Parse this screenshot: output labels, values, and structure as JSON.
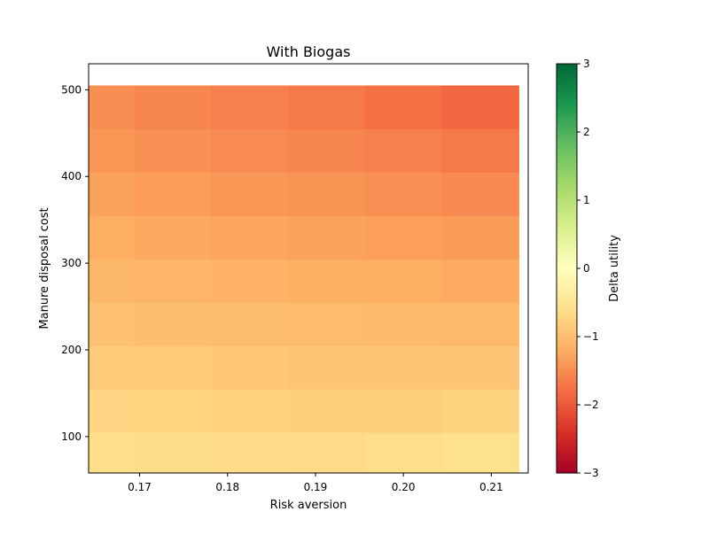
{
  "chart_data": {
    "type": "heatmap",
    "title": "With Biogas",
    "xlabel": "Risk aversion",
    "ylabel": "Manure disposal cost",
    "x": [
      0.165,
      0.17375,
      0.1825,
      0.19125,
      0.2,
      0.20875
    ],
    "y": [
      80,
      130,
      180,
      230,
      280,
      330,
      380,
      430,
      480
    ],
    "x_ticks": [
      0.17,
      0.18,
      0.19,
      0.2,
      0.21
    ],
    "x_tick_labels": [
      "0.17",
      "0.18",
      "0.19",
      "0.20",
      "0.21"
    ],
    "y_ticks": [
      100,
      200,
      300,
      400,
      500
    ],
    "y_tick_labels": [
      "100",
      "200",
      "300",
      "400",
      "500"
    ],
    "xlim": [
      0.1642,
      0.2142
    ],
    "ylim": [
      58,
      530
    ],
    "values": [
      [
        -0.62,
        -0.64,
        -0.65,
        -0.66,
        -0.62,
        -0.58
      ],
      [
        -0.73,
        -0.75,
        -0.77,
        -0.79,
        -0.79,
        -0.76
      ],
      [
        -0.85,
        -0.87,
        -0.89,
        -0.91,
        -0.93,
        -0.92
      ],
      [
        -0.97,
        -1.0,
        -1.02,
        -1.04,
        -1.06,
        -1.08
      ],
      [
        -1.09,
        -1.12,
        -1.15,
        -1.18,
        -1.2,
        -1.23
      ],
      [
        -1.2,
        -1.24,
        -1.28,
        -1.31,
        -1.34,
        -1.38
      ],
      [
        -1.31,
        -1.36,
        -1.41,
        -1.44,
        -1.48,
        -1.53
      ],
      [
        -1.42,
        -1.47,
        -1.52,
        -1.57,
        -1.62,
        -1.68
      ],
      [
        -1.5,
        -1.56,
        -1.62,
        -1.69,
        -1.76,
        -1.84
      ]
    ],
    "colorbar": {
      "label": "Delta utility",
      "vmin": -3,
      "vmax": 3,
      "ticks": [
        -3,
        -2,
        -1,
        0,
        1,
        2,
        3
      ],
      "tick_labels": [
        "−3",
        "−2",
        "−1",
        "0",
        "1",
        "2",
        "3"
      ],
      "colormap": "RdYlGn",
      "stops": [
        "#a50026",
        "#d73027",
        "#f46d43",
        "#fdae61",
        "#fee08b",
        "#ffffbf",
        "#d9ef8b",
        "#a6d96a",
        "#66bd63",
        "#1a9850",
        "#006837"
      ]
    },
    "grid": false,
    "legend": "none"
  }
}
